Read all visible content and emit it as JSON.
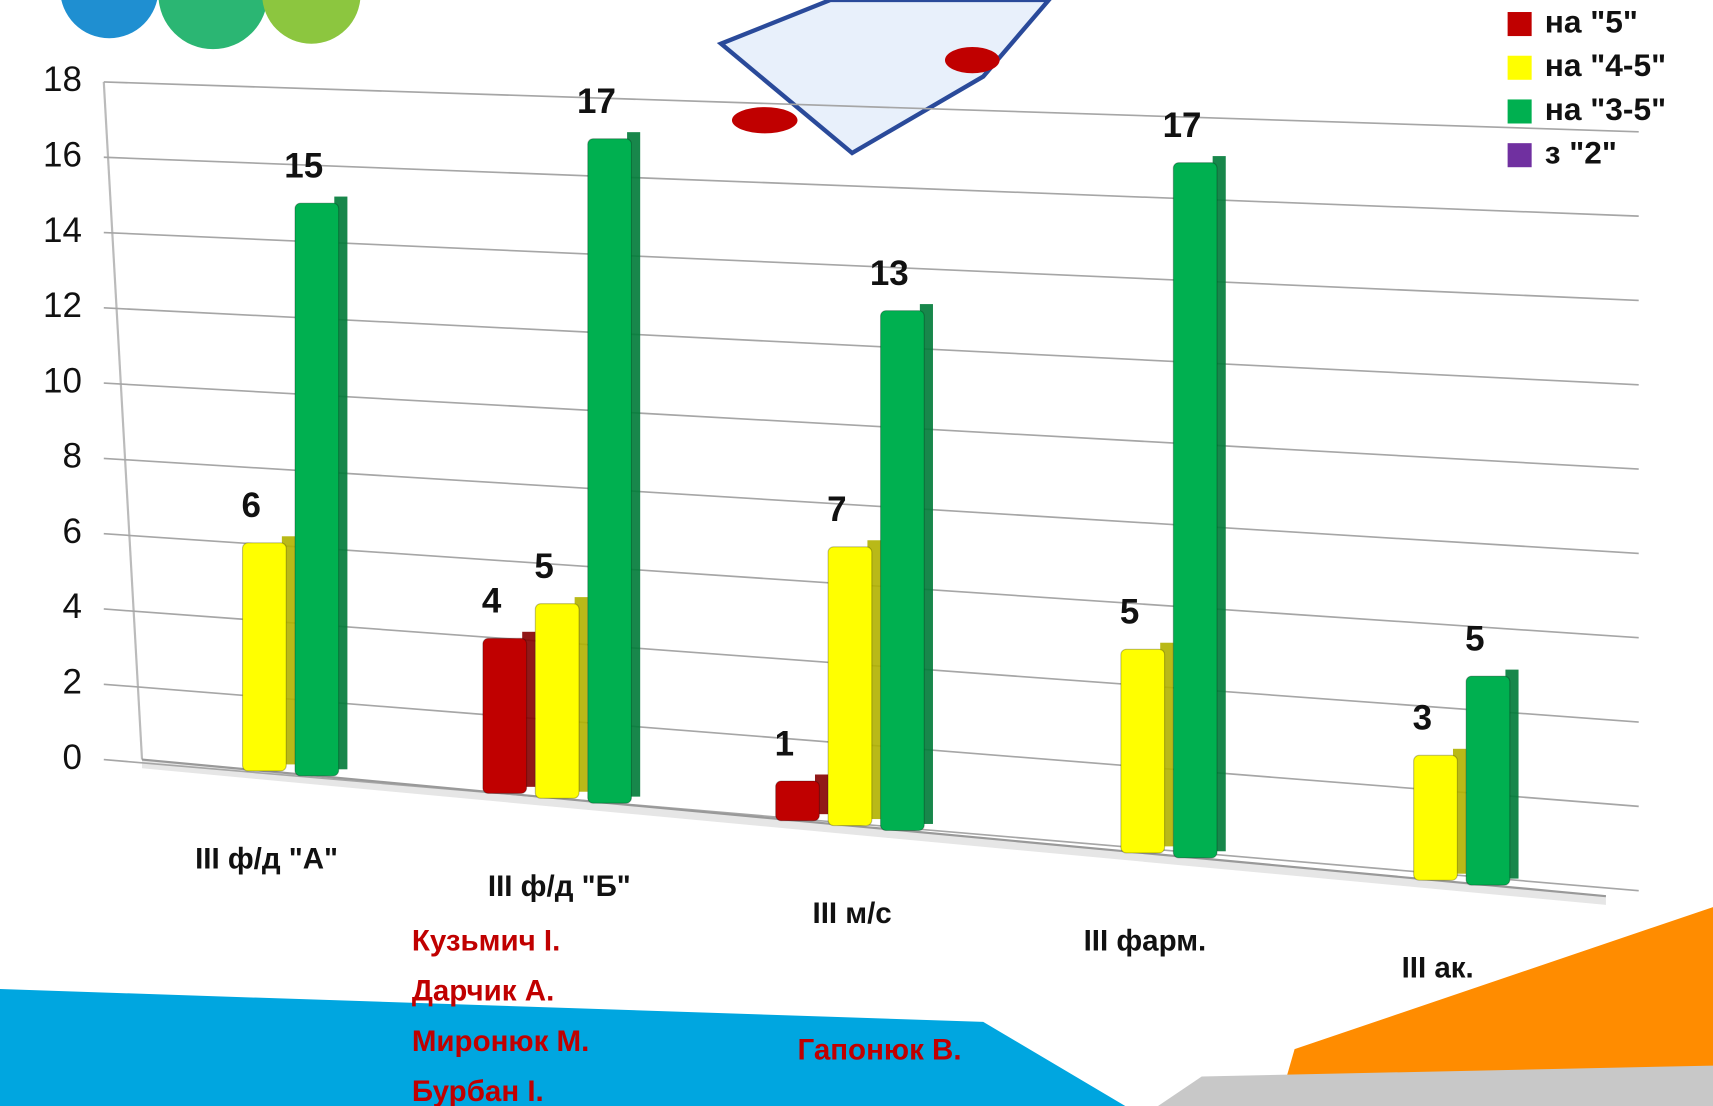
{
  "chart_data": {
    "type": "bar",
    "categories": [
      "III ф/д \"А\"",
      "III ф/д \"Б\"",
      "III м/с",
      "III фарм.",
      "III ак."
    ],
    "series": [
      {
        "name": "на \"5\"",
        "color": "#c00000",
        "values": [
          null,
          4,
          1,
          null,
          null
        ]
      },
      {
        "name": "на \"4-5\"",
        "color": "#ffff00",
        "values": [
          6,
          5,
          7,
          5,
          3
        ]
      },
      {
        "name": "на \"3-5\"",
        "color": "#00b050",
        "values": [
          15,
          17,
          13,
          17,
          5
        ]
      },
      {
        "name": "з \"2\"",
        "color": "#7030a0",
        "values": [
          null,
          null,
          null,
          null,
          null
        ]
      }
    ],
    "category_notes": [
      [],
      [
        "Кузьмич І.",
        "Дарчик А.",
        "Миронюк М.",
        "Бурбан І."
      ],
      [
        "Гапонюк В."
      ],
      [],
      []
    ],
    "ylim": [
      0,
      18
    ],
    "yticks": [
      0,
      2,
      4,
      6,
      8,
      10,
      12,
      14,
      16,
      18
    ],
    "grid": true,
    "legend": "top-right"
  }
}
